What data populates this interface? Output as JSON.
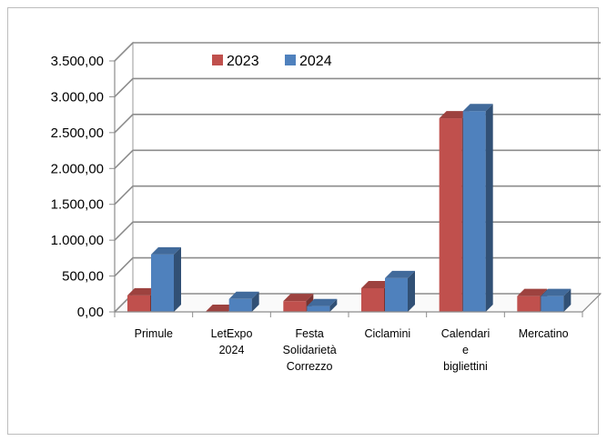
{
  "chart_data": {
    "type": "bar",
    "style": "3d-clustered-column",
    "categories": [
      "Primule",
      "LetExpo 2024",
      "Festa Solidarietà Correzzo",
      "Ciclamini",
      "Calendari e bigliettini",
      "Mercatino"
    ],
    "category_lines": [
      [
        "Primule"
      ],
      [
        "LetExpo",
        "2024"
      ],
      [
        "Festa",
        "Solidarietà",
        "Correzzo"
      ],
      [
        "Ciclamini"
      ],
      [
        "Calendari",
        "e",
        "bigliettini"
      ],
      [
        "Mercatino"
      ]
    ],
    "series": [
      {
        "name": "2023",
        "color": "#c0504d",
        "values": [
          230,
          0,
          150,
          330,
          2700,
          220
        ]
      },
      {
        "name": "2024",
        "color": "#4f81bd",
        "values": [
          800,
          180,
          80,
          470,
          2800,
          220
        ]
      }
    ],
    "ylim": [
      0,
      3500
    ],
    "yticks": [
      0,
      500,
      1000,
      1500,
      2000,
      2500,
      3000,
      3500
    ],
    "ytick_labels": [
      "0,00",
      "500,00",
      "1.000,00",
      "1.500,00",
      "2.000,00",
      "2.500,00",
      "3.000,00",
      "3.500,00"
    ],
    "grid": true,
    "legend_position": "top",
    "title": "",
    "xlabel": "",
    "ylabel": ""
  }
}
